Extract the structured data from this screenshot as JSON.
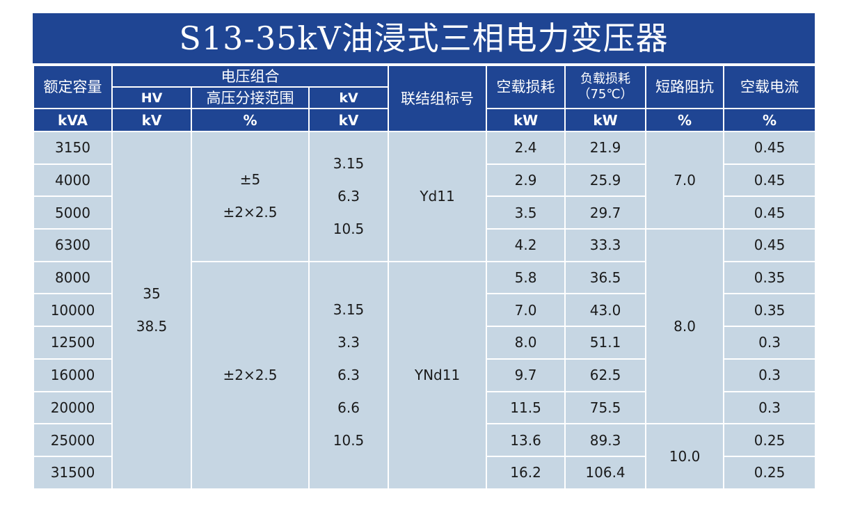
{
  "title": "S13-35kV油浸式三相电力变压器",
  "header": {
    "capacity": "额定容量",
    "voltage_group": "电压组合",
    "hv": "HV",
    "tap_range": "高压分接范围",
    "lv": "kV",
    "vector_group": "联结组标号",
    "no_load_loss": "空载损耗",
    "load_loss_line1": "负载损耗",
    "load_loss_line2": "（75℃）",
    "impedance": "短路阻抗",
    "no_load_current": "空载电流"
  },
  "units": {
    "capacity": "kVA",
    "hv": "kV",
    "tap": "%",
    "lv": "kV",
    "no_load_loss": "kW",
    "load_loss": "kW",
    "impedance": "%",
    "no_load_current": "%"
  },
  "merged": {
    "hv": [
      "35",
      "38.5"
    ],
    "tap_a": [
      "±5",
      "±2×2.5"
    ],
    "tap_b": [
      "±2×2.5"
    ],
    "lv_a": [
      "3.15",
      "6.3",
      "10.5"
    ],
    "lv_b": [
      "3.15",
      "3.3",
      "6.3",
      "6.6",
      "10.5"
    ],
    "vg_a": "Yd11",
    "vg_b": "YNd11",
    "imp_a": "7.0",
    "imp_b": "8.0",
    "imp_c": "10.0"
  },
  "rows": [
    {
      "capacity": "3150",
      "no_load_loss": "2.4",
      "load_loss": "21.9",
      "current": "0.45"
    },
    {
      "capacity": "4000",
      "no_load_loss": "2.9",
      "load_loss": "25.9",
      "current": "0.45"
    },
    {
      "capacity": "5000",
      "no_load_loss": "3.5",
      "load_loss": "29.7",
      "current": "0.45"
    },
    {
      "capacity": "6300",
      "no_load_loss": "4.2",
      "load_loss": "33.3",
      "current": "0.45"
    },
    {
      "capacity": "8000",
      "no_load_loss": "5.8",
      "load_loss": "36.5",
      "current": "0.35"
    },
    {
      "capacity": "10000",
      "no_load_loss": "7.0",
      "load_loss": "43.0",
      "current": "0.35"
    },
    {
      "capacity": "12500",
      "no_load_loss": "8.0",
      "load_loss": "51.1",
      "current": "0.3"
    },
    {
      "capacity": "16000",
      "no_load_loss": "9.7",
      "load_loss": "62.5",
      "current": "0.3"
    },
    {
      "capacity": "20000",
      "no_load_loss": "11.5",
      "load_loss": "75.5",
      "current": "0.3"
    },
    {
      "capacity": "25000",
      "no_load_loss": "13.6",
      "load_loss": "89.3",
      "current": "0.25"
    },
    {
      "capacity": "31500",
      "no_load_loss": "16.2",
      "load_loss": "106.4",
      "current": "0.25"
    }
  ]
}
